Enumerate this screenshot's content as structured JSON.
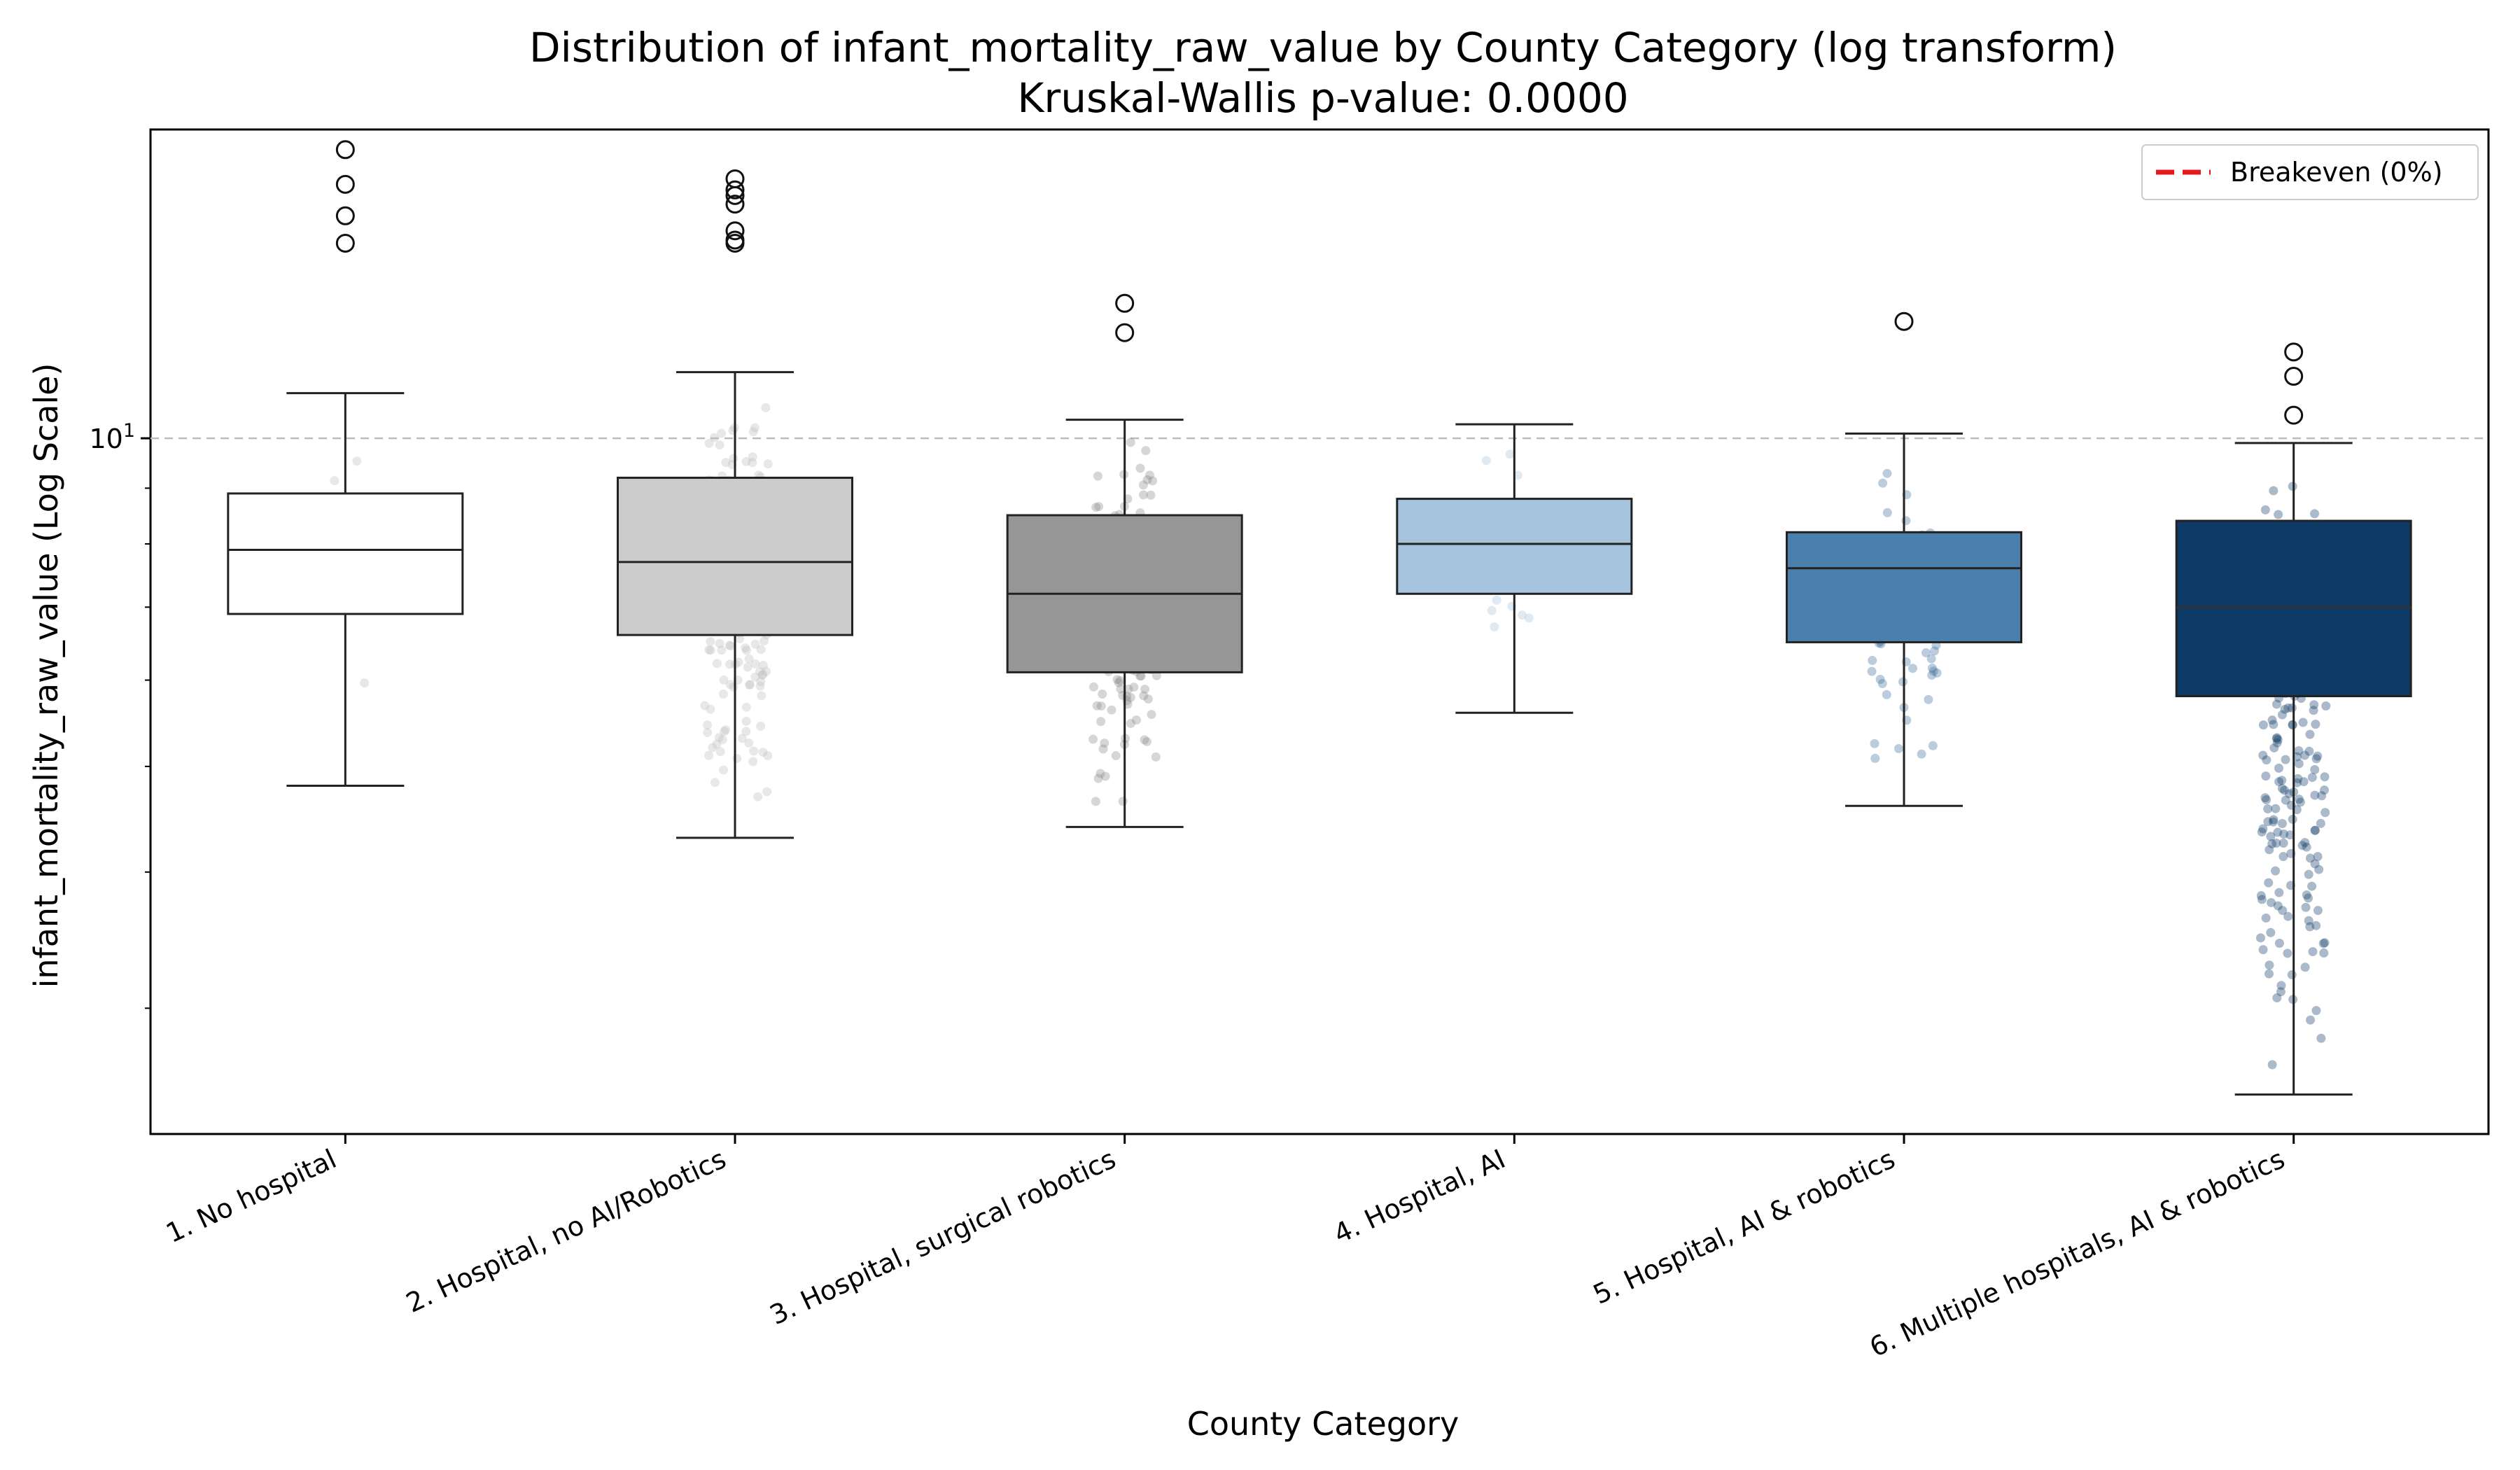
{
  "chart_data": {
    "type": "box",
    "title": "Distribution of infant_mortality_raw_value by County Category (log transform)",
    "subtitle": "Kruskal-Wallis p-value: 0.0000",
    "xlabel": "County Category",
    "ylabel": "infant_mortality_raw_value (Log Scale)",
    "y_scale": "log",
    "ylim": [
      2.3,
      19.2
    ],
    "y_tick_labels": [
      {
        "value": 10,
        "label": "10^1"
      }
    ],
    "y_minor_ticks": [
      3,
      4,
      5,
      6,
      7,
      8,
      9,
      20
    ],
    "grid": "y-major dashed",
    "reference_line": {
      "value": 10,
      "label": "Breakeven (0%)",
      "color": "#e31a1c",
      "style": "dashed"
    },
    "legend": {
      "placement": "top-right",
      "entries": [
        "Breakeven (0%)"
      ]
    },
    "categories": [
      "1. No hospital",
      "2. Hospital, no AI/Robotics",
      "3. Hospital, surgical robotics",
      "4. Hospital, AI",
      "5. Hospital, AI & robotics",
      "6. Multiple hospitals, AI & robotics"
    ],
    "boxes": [
      {
        "category": "1. No hospital",
        "whisker_low": 4.8,
        "q1": 6.9,
        "median": 7.9,
        "q3": 8.9,
        "whisker_high": 11.0,
        "outliers": [
          15.1,
          16.0,
          17.1,
          18.4
        ],
        "color": "#ffffff"
      },
      {
        "category": "2. Hospital, no AI/Robotics",
        "whisker_low": 4.3,
        "q1": 6.6,
        "median": 7.7,
        "q3": 9.2,
        "whisker_high": 11.5,
        "outliers": [
          15.1,
          15.2,
          15.5,
          16.4,
          16.7,
          16.9,
          17.3
        ],
        "color": "#cccccc"
      },
      {
        "category": "3. Hospital, surgical robotics",
        "whisker_low": 4.4,
        "q1": 6.1,
        "median": 7.2,
        "q3": 8.5,
        "whisker_high": 10.4,
        "outliers": [
          12.5,
          13.3
        ],
        "color": "#969696"
      },
      {
        "category": "4. Hospital, AI",
        "whisker_low": 5.6,
        "q1": 7.2,
        "median": 8.0,
        "q3": 8.8,
        "whisker_high": 10.3,
        "outliers": [],
        "color": "#a6c4de"
      },
      {
        "category": "5. Hospital, AI & robotics",
        "whisker_low": 4.6,
        "q1": 6.5,
        "median": 7.6,
        "q3": 8.2,
        "whisker_high": 10.1,
        "outliers": [
          12.8
        ],
        "color": "#4a7fab"
      },
      {
        "category": "6. Multiple hospitals, AI & robotics",
        "whisker_low": 2.5,
        "q1": 5.8,
        "median": 7.0,
        "q3": 8.4,
        "whisker_high": 9.9,
        "outliers": [
          10.5,
          11.4,
          12.0
        ],
        "color": "#0e3a66"
      }
    ]
  }
}
